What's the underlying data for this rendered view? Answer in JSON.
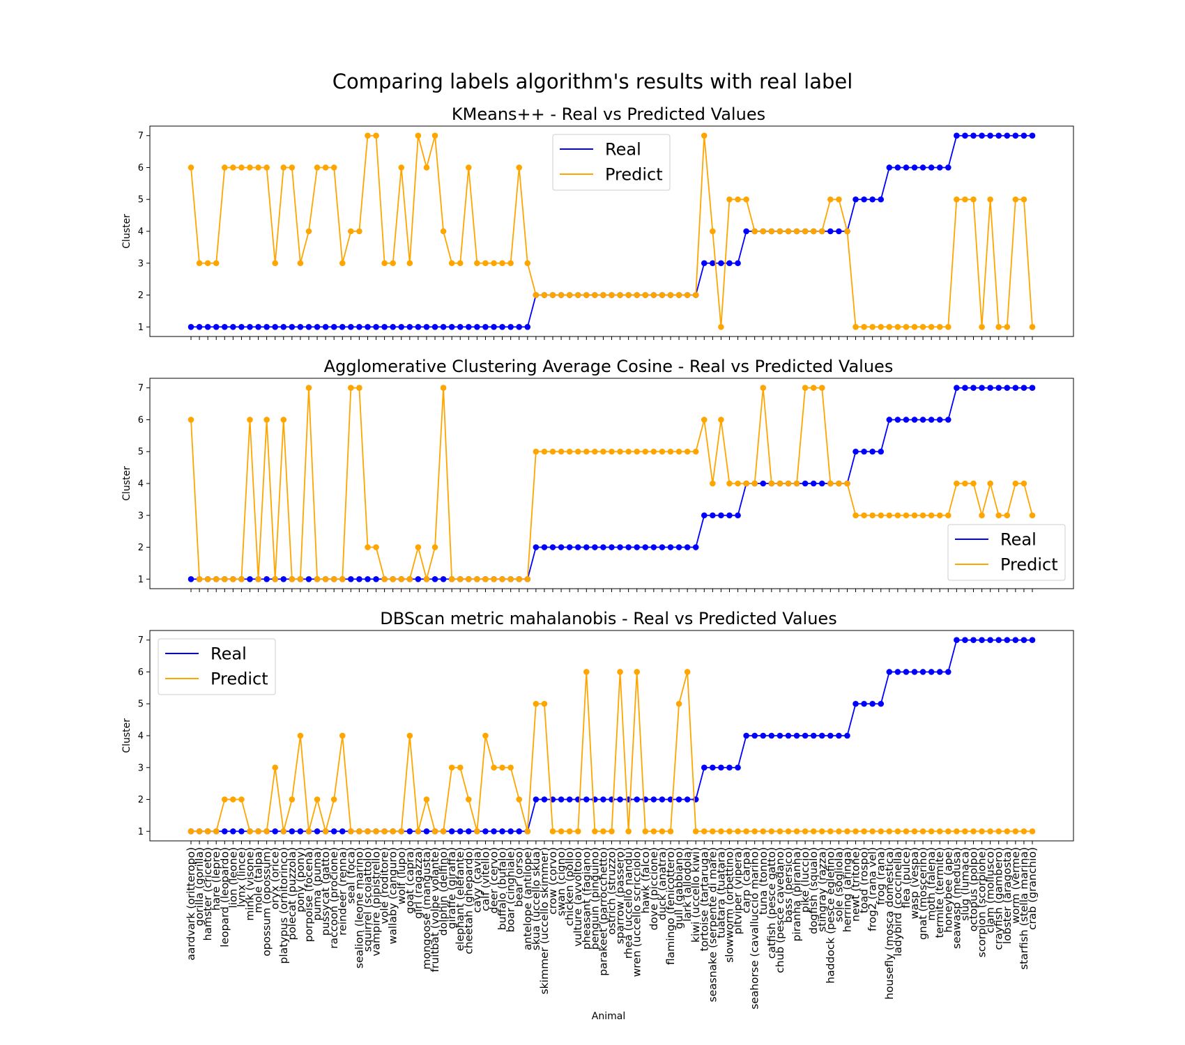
{
  "figure": {
    "title": "Comparing labels algorithm's results with real label",
    "xlabel": "Animal"
  },
  "colors": {
    "real": "#0000ff",
    "predict": "#ffa500"
  },
  "chart_data": {
    "type": "line",
    "categories": [
      "aardvark (oritteropo)",
      "gorilla (gorilla)",
      "hamster (criceto)",
      "hare (lepre)",
      "leopard (leopardo)",
      "lion (leone)",
      "lynx (lince)",
      "mink (visone)",
      "mole (talpa)",
      "opossum (opossum)",
      "oryx (orice)",
      "platypus (ornitorinco)",
      "polecat (puzzola)",
      "pony (pony)",
      "porpoise (focena)",
      "puma (puma)",
      "pussycat (gatto)",
      "raccoon (procione)",
      "reindeer (renna)",
      "seal (foca)",
      "sealion (leone marino)",
      "squirrel (scoiattolo)",
      "vampire (pipistrello)",
      "vole (roditore)",
      "wallaby (canguro)",
      "wolf (lupo)",
      "goat (capra)",
      "girl (ragazza)",
      "mongoose (mangusta)",
      "fruitbat (volpe volante)",
      "dolphin (delfino)",
      "giraffe (giraffa)",
      "elephant (elefante)",
      "cheetah (ghepardo)",
      "cavy (cavia)",
      "calf (vitello)",
      "deer (cervo)",
      "buffalo (bufalo)",
      "boar (cinghiale)",
      "bear (orso)",
      "antelope (antilope)",
      "skua (uccello skua)",
      "skimmer (uccello skimmer)",
      "crow (corvo)",
      "swan (cigno)",
      "chicken (pollo)",
      "vulture (avvoltoio)",
      "pheasant (fagiano)",
      "penguin (pinguino)",
      "parakeet (parrocchetto)",
      "ostrich (struzzo)",
      "sparrow (passero)",
      "rhea (uccello nandù)",
      "wren (uccello scricciolo)",
      "hawk (falco)",
      "dove (piccione)",
      "duck (anatra)",
      "flamingo (fenicottero)",
      "gull (gabbiano)",
      "lark (allodola)",
      "kiwi (uccello kiwi)",
      "tortoise (tartaruga)",
      "seasnake (serpente di mare)",
      "tuatara (tuatara)",
      "slowworm (orbettino)",
      "pitviper (vipera)",
      "carp (carpa)",
      "seahorse (cavalluccio marino)",
      "tuna (tonno)",
      "catfish (pesce gatto)",
      "chub (pesce cavedano)",
      "bass (persico)",
      "piranha (piranha)",
      "pike (luccio)",
      "dogfish (squalo)",
      "stingray (razza)",
      "haddock (pesce eglefino)",
      "sole (sogliola)",
      "herring (aringa)",
      "newt (tritone)",
      "toad (rospo)",
      "frog2 (rana vel)",
      "frog (rana)",
      "housefly (mosca domestica)",
      "ladybird (coccinella)",
      "flea (pulce)",
      "wasp (vespa)",
      "gnat (moscerino)",
      "moth (falena)",
      "termite (termite)",
      "honeybee (ape)",
      "seawasp (medusa)",
      "slug (lumaca)",
      "octopus (polpo)",
      "scorpion (scorpione)",
      "clam (mollusco)",
      "crayfish (gambero)",
      "lobster (aragosta)",
      "worm (verme)",
      "starfish (stella marina)",
      "crab (granchio)"
    ],
    "real": [
      1,
      1,
      1,
      1,
      1,
      1,
      1,
      1,
      1,
      1,
      1,
      1,
      1,
      1,
      1,
      1,
      1,
      1,
      1,
      1,
      1,
      1,
      1,
      1,
      1,
      1,
      1,
      1,
      1,
      1,
      1,
      1,
      1,
      1,
      1,
      1,
      1,
      1,
      1,
      1,
      1,
      2,
      2,
      2,
      2,
      2,
      2,
      2,
      2,
      2,
      2,
      2,
      2,
      2,
      2,
      2,
      2,
      2,
      2,
      2,
      2,
      3,
      3,
      3,
      3,
      3,
      4,
      4,
      4,
      4,
      4,
      4,
      4,
      4,
      4,
      4,
      4,
      4,
      4,
      5,
      5,
      5,
      5,
      6,
      6,
      6,
      6,
      6,
      6,
      6,
      6,
      7,
      7,
      7,
      7,
      7,
      7,
      7,
      7,
      7,
      7
    ],
    "yticks": [
      1,
      2,
      3,
      4,
      5,
      6,
      7
    ],
    "ylim": [
      0.7,
      7.3
    ],
    "ylabel": "Cluster",
    "series_names": [
      "Real",
      "Predict"
    ],
    "panels": [
      {
        "title": "KMeans++ - Real vs Predicted Values",
        "legend": "upper-center",
        "predict": [
          6,
          3,
          3,
          3,
          6,
          6,
          6,
          6,
          6,
          6,
          3,
          6,
          6,
          3,
          4,
          6,
          6,
          6,
          3,
          4,
          4,
          7,
          7,
          3,
          3,
          6,
          3,
          7,
          6,
          7,
          4,
          3,
          3,
          6,
          3,
          3,
          3,
          3,
          3,
          6,
          3,
          2,
          2,
          2,
          2,
          2,
          2,
          2,
          2,
          2,
          2,
          2,
          2,
          2,
          2,
          2,
          2,
          2,
          2,
          2,
          2,
          7,
          4,
          1,
          5,
          5,
          5,
          4,
          4,
          4,
          4,
          4,
          4,
          4,
          4,
          4,
          5,
          5,
          4,
          1,
          1,
          1,
          1,
          1,
          1,
          1,
          1,
          1,
          1,
          1,
          1,
          5,
          5,
          5,
          1,
          5,
          1,
          1,
          5,
          5,
          1
        ]
      },
      {
        "title": "Agglomerative Clustering Average Cosine - Real vs Predicted Values",
        "legend": "lower-right",
        "predict": [
          6,
          1,
          1,
          1,
          1,
          1,
          1,
          6,
          1,
          6,
          1,
          6,
          1,
          1,
          7,
          1,
          1,
          1,
          1,
          7,
          7,
          2,
          2,
          1,
          1,
          1,
          1,
          2,
          1,
          2,
          7,
          1,
          1,
          1,
          1,
          1,
          1,
          1,
          1,
          1,
          1,
          5,
          5,
          5,
          5,
          5,
          5,
          5,
          5,
          5,
          5,
          5,
          5,
          5,
          5,
          5,
          5,
          5,
          5,
          5,
          5,
          6,
          4,
          6,
          4,
          4,
          4,
          4,
          7,
          4,
          4,
          4,
          4,
          7,
          7,
          7,
          4,
          4,
          4,
          3,
          3,
          3,
          3,
          3,
          3,
          3,
          3,
          3,
          3,
          3,
          3,
          4,
          4,
          4,
          3,
          4,
          3,
          3,
          4,
          4,
          3
        ]
      },
      {
        "title": "DBScan metric mahalanobis - Real vs Predicted Values",
        "legend": "upper-left",
        "predict": [
          1,
          1,
          1,
          1,
          2,
          2,
          2,
          1,
          1,
          1,
          3,
          1,
          2,
          4,
          1,
          2,
          1,
          2,
          4,
          1,
          1,
          1,
          1,
          1,
          1,
          1,
          4,
          1,
          2,
          1,
          1,
          3,
          3,
          2,
          1,
          4,
          3,
          3,
          3,
          2,
          1,
          5,
          5,
          1,
          1,
          1,
          1,
          6,
          1,
          1,
          1,
          6,
          1,
          6,
          1,
          1,
          1,
          1,
          5,
          6,
          1,
          1,
          1,
          1,
          1,
          1,
          1,
          1,
          1,
          1,
          1,
          1,
          1,
          1,
          1,
          1,
          1,
          1,
          1,
          1,
          1,
          1,
          1,
          1,
          1,
          1,
          1,
          1,
          1,
          1,
          1,
          1,
          1,
          1,
          1,
          1,
          1,
          1,
          1,
          1,
          1
        ]
      }
    ]
  }
}
